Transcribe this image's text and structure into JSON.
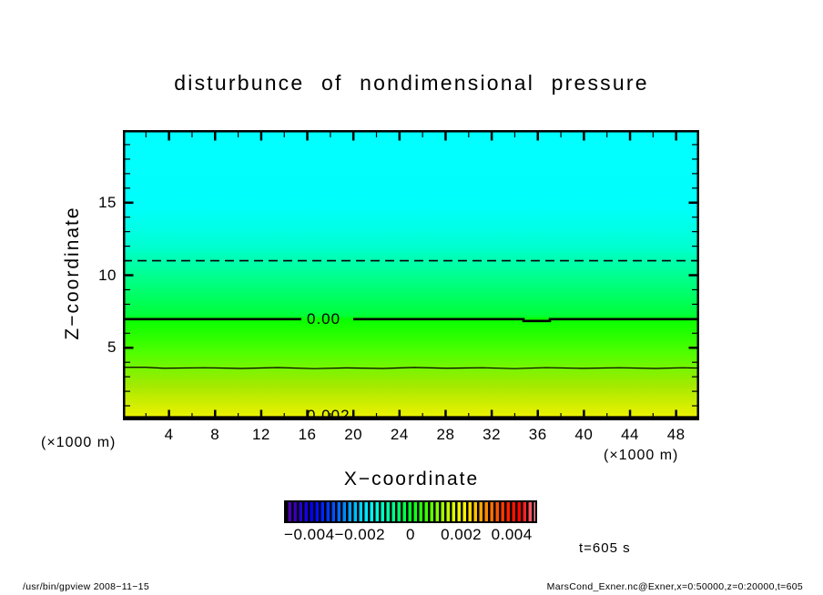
{
  "window": {
    "background": "#ffffff"
  },
  "title": "disturbunce  of  nondimensional  pressure",
  "axes": {
    "xlabel": "X−coordinate",
    "ylabel": "Z−coordinate",
    "x_unit_left": "(×1000 m)",
    "x_unit_right": "(×1000 m)"
  },
  "time_label": "t=605 s",
  "footer": {
    "left": "/usr/bin/gpview  2008−11−15",
    "right": "MarsCond_Exner.nc@Exner,x=0:50000,z=0:20000,t=605"
  },
  "chart_data": {
    "type": "heatmap",
    "title": "disturbunce of nondimensional pressure",
    "xlabel": "X-coordinate",
    "ylabel": "Z-coordinate",
    "x_units": "×1000 m",
    "y_units": "×1000 m",
    "xlim": [
      0,
      50
    ],
    "ylim": [
      0,
      20
    ],
    "grid": false,
    "x_major_ticks": [
      4,
      8,
      12,
      16,
      20,
      24,
      28,
      32,
      36,
      40,
      44,
      48
    ],
    "x_minor_step": 2,
    "y_major_ticks": [
      5,
      10,
      15
    ],
    "y_minor_step": 1,
    "x_tick_labels": [
      "4",
      "8",
      "12",
      "16",
      "20",
      "24",
      "28",
      "32",
      "36",
      "40",
      "44",
      "48"
    ],
    "y_tick_labels": [
      "5",
      "10",
      "15"
    ],
    "field_description": "horizontally uniform pressure disturbance, positive (yellow) near surface decreasing with height to negative (cyan) aloft",
    "profile_z_vs_value": [
      [
        0,
        0.0022
      ],
      [
        3.7,
        0.001
      ],
      [
        7.0,
        0.0
      ],
      [
        11.0,
        -0.001
      ],
      [
        20.0,
        -0.0025
      ]
    ],
    "contours": [
      {
        "value": -0.001,
        "z": 11.0,
        "style": "dashed",
        "label": ""
      },
      {
        "value": 0.0,
        "z": 7.0,
        "style": "thick",
        "label": "0.00"
      },
      {
        "value": 0.001,
        "z": 3.65,
        "style": "thin",
        "label": ""
      },
      {
        "value": 0.002,
        "z": 0.2,
        "style": "thick",
        "label": "0.002"
      }
    ],
    "gradient_stops": [
      {
        "pos": 0,
        "color": "#00ffff"
      },
      {
        "pos": 26,
        "color": "#00fffb"
      },
      {
        "pos": 34,
        "color": "#00ffe6"
      },
      {
        "pos": 41,
        "color": "#00ffcc"
      },
      {
        "pos": 45,
        "color": "#00ffae"
      },
      {
        "pos": 52,
        "color": "#00ff84"
      },
      {
        "pos": 58,
        "color": "#00ff5e"
      },
      {
        "pos": 64,
        "color": "#00ff38"
      },
      {
        "pos": 65,
        "color": "#08ff00"
      },
      {
        "pos": 71,
        "color": "#2bff00"
      },
      {
        "pos": 77,
        "color": "#52ff00"
      },
      {
        "pos": 82,
        "color": "#78f500"
      },
      {
        "pos": 88,
        "color": "#a4ea00"
      },
      {
        "pos": 94,
        "color": "#ceed00"
      },
      {
        "pos": 100,
        "color": "#f3f300"
      }
    ],
    "colorbar": {
      "range": [
        -0.005,
        0.005
      ],
      "tick_values": [
        -0.004,
        -0.002,
        0,
        0.002,
        0.004
      ],
      "tick_labels": [
        "−0.004",
        "−0.002",
        "0",
        "0.002",
        "0.004"
      ],
      "colors": [
        "#5500aa",
        "#2a00cc",
        "#0000ff",
        "#0033ff",
        "#0077ff",
        "#00bbff",
        "#00f2ff",
        "#00ffc3",
        "#00ff77",
        "#00ff22",
        "#33ff00",
        "#88ff00",
        "#d5ff00",
        "#ffee00",
        "#ffaa00",
        "#ff6600",
        "#ff2200",
        "#ff0000",
        "#ff8899"
      ],
      "legend_position": "bottom"
    }
  }
}
